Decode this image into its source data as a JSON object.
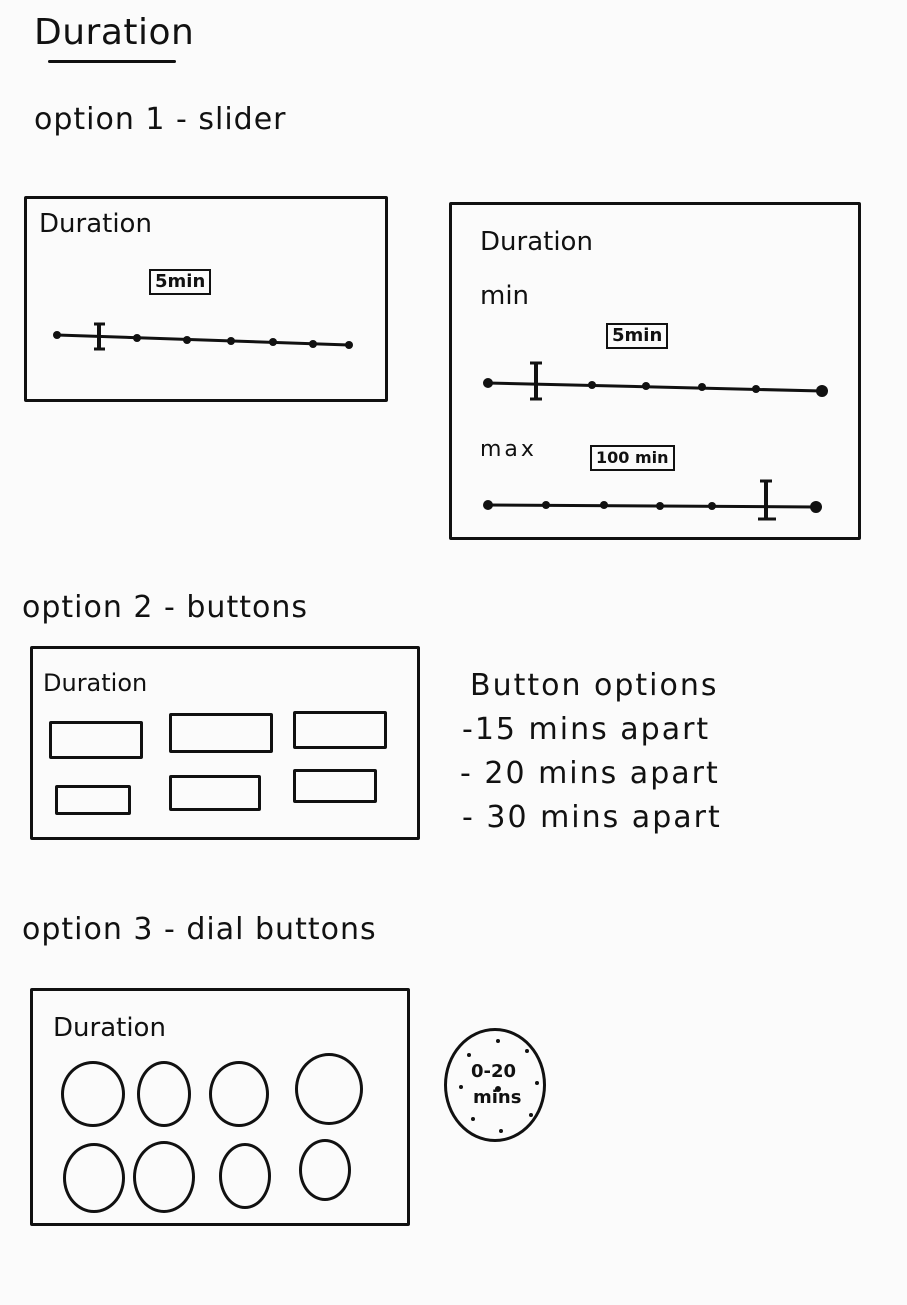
{
  "page_title": "Duration",
  "option1": {
    "heading": "option 1 - slider",
    "single": {
      "title": "Duration",
      "value_tag": "5min",
      "level_fraction": 0.14
    },
    "range": {
      "title": "Duration",
      "min_label": "min",
      "min_tag": "5min",
      "min_fraction": 0.14,
      "max_label": "max",
      "max_tag": "100 min",
      "max_fraction": 0.85
    }
  },
  "option2": {
    "heading": "option 2 - buttons",
    "panel_title": "Duration",
    "notes_title": "Button options",
    "notes": [
      "-15 mins apart",
      "- 20 mins apart",
      "- 30 mins apart"
    ]
  },
  "option3": {
    "heading": "option 3 - dial buttons",
    "panel_title": "Duration",
    "dial_text_line1": "0-20",
    "dial_text_line2": "mins"
  }
}
